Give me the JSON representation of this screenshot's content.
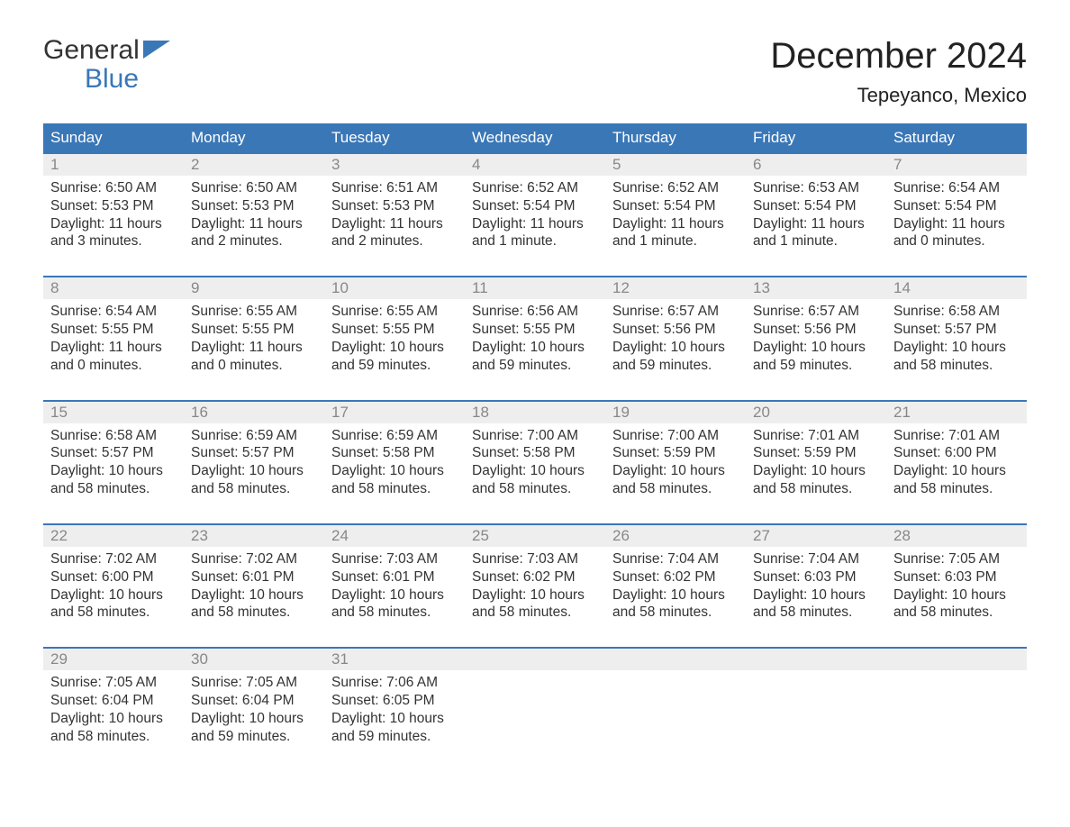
{
  "logo": {
    "top": "General",
    "bottom": "Blue"
  },
  "title": "December 2024",
  "location": "Tepeyanco, Mexico",
  "colors": {
    "header_bg": "#3a77b7",
    "header_text": "#ffffff",
    "daynum_bg": "#eeeeee",
    "daynum_text": "#888888",
    "body_text": "#333333",
    "page_bg": "#ffffff",
    "accent": "#3a77b7"
  },
  "weekdays": [
    "Sunday",
    "Monday",
    "Tuesday",
    "Wednesday",
    "Thursday",
    "Friday",
    "Saturday"
  ],
  "weeks": [
    {
      "days": [
        {
          "n": "1",
          "sunrise": "6:50 AM",
          "sunset": "5:53 PM",
          "dl1": "Daylight: 11 hours",
          "dl2": "and 3 minutes."
        },
        {
          "n": "2",
          "sunrise": "6:50 AM",
          "sunset": "5:53 PM",
          "dl1": "Daylight: 11 hours",
          "dl2": "and 2 minutes."
        },
        {
          "n": "3",
          "sunrise": "6:51 AM",
          "sunset": "5:53 PM",
          "dl1": "Daylight: 11 hours",
          "dl2": "and 2 minutes."
        },
        {
          "n": "4",
          "sunrise": "6:52 AM",
          "sunset": "5:54 PM",
          "dl1": "Daylight: 11 hours",
          "dl2": "and 1 minute."
        },
        {
          "n": "5",
          "sunrise": "6:52 AM",
          "sunset": "5:54 PM",
          "dl1": "Daylight: 11 hours",
          "dl2": "and 1 minute."
        },
        {
          "n": "6",
          "sunrise": "6:53 AM",
          "sunset": "5:54 PM",
          "dl1": "Daylight: 11 hours",
          "dl2": "and 1 minute."
        },
        {
          "n": "7",
          "sunrise": "6:54 AM",
          "sunset": "5:54 PM",
          "dl1": "Daylight: 11 hours",
          "dl2": "and 0 minutes."
        }
      ]
    },
    {
      "days": [
        {
          "n": "8",
          "sunrise": "6:54 AM",
          "sunset": "5:55 PM",
          "dl1": "Daylight: 11 hours",
          "dl2": "and 0 minutes."
        },
        {
          "n": "9",
          "sunrise": "6:55 AM",
          "sunset": "5:55 PM",
          "dl1": "Daylight: 11 hours",
          "dl2": "and 0 minutes."
        },
        {
          "n": "10",
          "sunrise": "6:55 AM",
          "sunset": "5:55 PM",
          "dl1": "Daylight: 10 hours",
          "dl2": "and 59 minutes."
        },
        {
          "n": "11",
          "sunrise": "6:56 AM",
          "sunset": "5:55 PM",
          "dl1": "Daylight: 10 hours",
          "dl2": "and 59 minutes."
        },
        {
          "n": "12",
          "sunrise": "6:57 AM",
          "sunset": "5:56 PM",
          "dl1": "Daylight: 10 hours",
          "dl2": "and 59 minutes."
        },
        {
          "n": "13",
          "sunrise": "6:57 AM",
          "sunset": "5:56 PM",
          "dl1": "Daylight: 10 hours",
          "dl2": "and 59 minutes."
        },
        {
          "n": "14",
          "sunrise": "6:58 AM",
          "sunset": "5:57 PM",
          "dl1": "Daylight: 10 hours",
          "dl2": "and 58 minutes."
        }
      ]
    },
    {
      "days": [
        {
          "n": "15",
          "sunrise": "6:58 AM",
          "sunset": "5:57 PM",
          "dl1": "Daylight: 10 hours",
          "dl2": "and 58 minutes."
        },
        {
          "n": "16",
          "sunrise": "6:59 AM",
          "sunset": "5:57 PM",
          "dl1": "Daylight: 10 hours",
          "dl2": "and 58 minutes."
        },
        {
          "n": "17",
          "sunrise": "6:59 AM",
          "sunset": "5:58 PM",
          "dl1": "Daylight: 10 hours",
          "dl2": "and 58 minutes."
        },
        {
          "n": "18",
          "sunrise": "7:00 AM",
          "sunset": "5:58 PM",
          "dl1": "Daylight: 10 hours",
          "dl2": "and 58 minutes."
        },
        {
          "n": "19",
          "sunrise": "7:00 AM",
          "sunset": "5:59 PM",
          "dl1": "Daylight: 10 hours",
          "dl2": "and 58 minutes."
        },
        {
          "n": "20",
          "sunrise": "7:01 AM",
          "sunset": "5:59 PM",
          "dl1": "Daylight: 10 hours",
          "dl2": "and 58 minutes."
        },
        {
          "n": "21",
          "sunrise": "7:01 AM",
          "sunset": "6:00 PM",
          "dl1": "Daylight: 10 hours",
          "dl2": "and 58 minutes."
        }
      ]
    },
    {
      "days": [
        {
          "n": "22",
          "sunrise": "7:02 AM",
          "sunset": "6:00 PM",
          "dl1": "Daylight: 10 hours",
          "dl2": "and 58 minutes."
        },
        {
          "n": "23",
          "sunrise": "7:02 AM",
          "sunset": "6:01 PM",
          "dl1": "Daylight: 10 hours",
          "dl2": "and 58 minutes."
        },
        {
          "n": "24",
          "sunrise": "7:03 AM",
          "sunset": "6:01 PM",
          "dl1": "Daylight: 10 hours",
          "dl2": "and 58 minutes."
        },
        {
          "n": "25",
          "sunrise": "7:03 AM",
          "sunset": "6:02 PM",
          "dl1": "Daylight: 10 hours",
          "dl2": "and 58 minutes."
        },
        {
          "n": "26",
          "sunrise": "7:04 AM",
          "sunset": "6:02 PM",
          "dl1": "Daylight: 10 hours",
          "dl2": "and 58 minutes."
        },
        {
          "n": "27",
          "sunrise": "7:04 AM",
          "sunset": "6:03 PM",
          "dl1": "Daylight: 10 hours",
          "dl2": "and 58 minutes."
        },
        {
          "n": "28",
          "sunrise": "7:05 AM",
          "sunset": "6:03 PM",
          "dl1": "Daylight: 10 hours",
          "dl2": "and 58 minutes."
        }
      ]
    },
    {
      "days": [
        {
          "n": "29",
          "sunrise": "7:05 AM",
          "sunset": "6:04 PM",
          "dl1": "Daylight: 10 hours",
          "dl2": "and 58 minutes."
        },
        {
          "n": "30",
          "sunrise": "7:05 AM",
          "sunset": "6:04 PM",
          "dl1": "Daylight: 10 hours",
          "dl2": "and 59 minutes."
        },
        {
          "n": "31",
          "sunrise": "7:06 AM",
          "sunset": "6:05 PM",
          "dl1": "Daylight: 10 hours",
          "dl2": "and 59 minutes."
        },
        null,
        null,
        null,
        null
      ]
    }
  ],
  "labels": {
    "sunrise": "Sunrise: ",
    "sunset": "Sunset: "
  }
}
